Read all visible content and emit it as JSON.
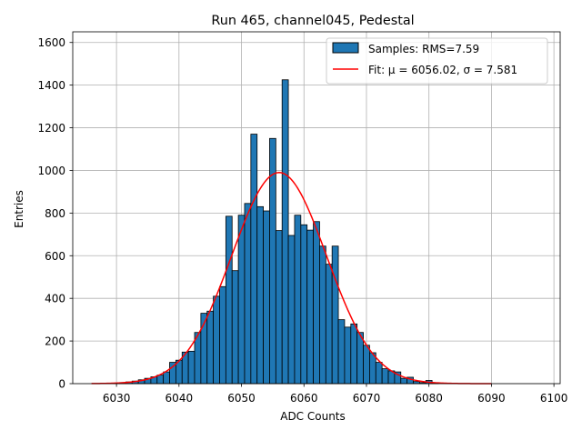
{
  "chart_data": {
    "type": "bar",
    "title": "Run 465, channel045, Pedestal",
    "xlabel": "ADC Counts",
    "ylabel": "Entries",
    "xlim": [
      6023,
      6101
    ],
    "ylim": [
      0,
      1650
    ],
    "grid": true,
    "legend_position": "top-right",
    "x_ticks": [
      6030,
      6040,
      6050,
      6060,
      6070,
      6080,
      6090,
      6100
    ],
    "y_ticks": [
      0,
      200,
      400,
      600,
      800,
      1000,
      1200,
      1400,
      1600
    ],
    "bin_width": 1,
    "series": [
      {
        "name": "Samples: RMS=7.59",
        "kind": "histogram",
        "color": "#1f77b4",
        "edgecolor": "#000000",
        "bins": [
          6030,
          6031,
          6032,
          6033,
          6034,
          6035,
          6036,
          6037,
          6038,
          6039,
          6040,
          6041,
          6042,
          6043,
          6044,
          6045,
          6046,
          6047,
          6048,
          6049,
          6050,
          6051,
          6052,
          6053,
          6054,
          6055,
          6056,
          6057,
          6058,
          6059,
          6060,
          6061,
          6062,
          6063,
          6064,
          6065,
          6066,
          6067,
          6068,
          6069,
          6070,
          6071,
          6072,
          6073,
          6074,
          6075,
          6076,
          6077,
          6078,
          6079,
          6080,
          6081
        ],
        "values": [
          2,
          5,
          8,
          12,
          18,
          25,
          32,
          40,
          55,
          100,
          110,
          148,
          152,
          240,
          330,
          340,
          410,
          455,
          785,
          530,
          790,
          845,
          1170,
          830,
          810,
          1150,
          718,
          1425,
          695,
          790,
          745,
          720,
          760,
          645,
          560,
          645,
          300,
          265,
          280,
          240,
          180,
          145,
          100,
          70,
          60,
          55,
          25,
          30,
          10,
          5,
          15,
          3
        ]
      },
      {
        "name": "Fit: μ = 6056.02, σ = 7.581",
        "kind": "line",
        "color": "#ff0000",
        "mu": 6056.02,
        "sigma": 7.581,
        "amplitude": 990,
        "x_range": [
          6026,
          6090
        ]
      }
    ]
  }
}
